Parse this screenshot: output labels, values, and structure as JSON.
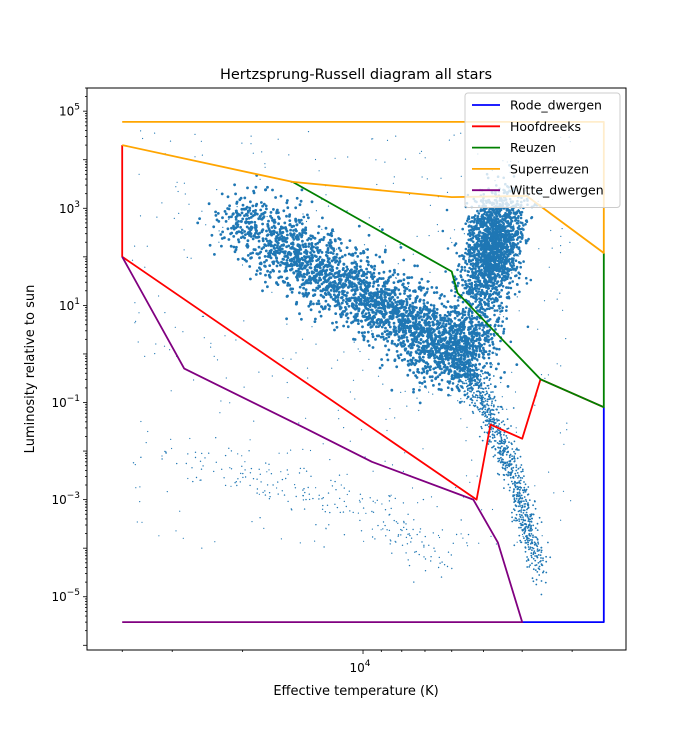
{
  "chart_data": {
    "type": "scatter",
    "title": "Hertzsprung-Russell diagram all stars",
    "xlabel": "Effective temperature (K)",
    "ylabel": "Luminosity relative to sun",
    "x_scale": "log",
    "y_scale": "log",
    "x_direction": "reversed",
    "xlim": [
      49000,
      2200
    ],
    "ylim": [
      8e-07,
      300000.0
    ],
    "x_tick_labels": [
      {
        "value": 10000,
        "label": "10^4"
      }
    ],
    "y_tick_labels": [
      {
        "value": 100000.0,
        "label": "10^5"
      },
      {
        "value": 1000.0,
        "label": "10^3"
      },
      {
        "value": 10.0,
        "label": "10^1"
      },
      {
        "value": 0.1,
        "label": "10^-1"
      },
      {
        "value": 0.001,
        "label": "10^-3"
      },
      {
        "value": 1e-05,
        "label": "10^-5"
      }
    ],
    "legend_position": "top-right",
    "scatter_color": "#1f77b4",
    "series": [
      {
        "name": "Rode_dwergen",
        "color": "#0000ff",
        "points": [
          [
            4000,
            3e-06
          ],
          [
            2500,
            3e-06
          ],
          [
            2500,
            0.08
          ]
        ]
      },
      {
        "name": "Hoofdreeks",
        "color": "#ff0000",
        "points": [
          [
            40000,
            20000
          ],
          [
            40000,
            100
          ],
          [
            5200,
            0.001
          ],
          [
            4800,
            0.035
          ],
          [
            4000,
            0.018
          ],
          [
            3600,
            0.3
          ],
          [
            2500,
            0.08
          ]
        ]
      },
      {
        "name": "Reuzen",
        "color": "#008000",
        "points": [
          [
            15000,
            3500
          ],
          [
            6000,
            50
          ],
          [
            5800,
            18
          ],
          [
            3600,
            0.3
          ],
          [
            2500,
            0.08
          ],
          [
            2500,
            120
          ]
        ]
      },
      {
        "name": "Superreuzen",
        "color": "#ffa500",
        "points": [
          [
            40000,
            60000
          ],
          [
            2500,
            60000
          ],
          [
            2500,
            120
          ],
          [
            3900,
            1800
          ],
          [
            6000,
            1700
          ],
          [
            15000,
            3500
          ],
          [
            40000,
            20000
          ]
        ]
      },
      {
        "name": "Witte_dwergen",
        "color": "#800080",
        "points": [
          [
            40000,
            100
          ],
          [
            28000,
            0.5
          ],
          [
            14000,
            0.03
          ],
          [
            9500,
            0.006
          ],
          [
            5300,
            0.001
          ],
          [
            4600,
            0.00013
          ],
          [
            4000,
            3e-06
          ],
          [
            40000,
            3e-06
          ]
        ]
      }
    ]
  }
}
